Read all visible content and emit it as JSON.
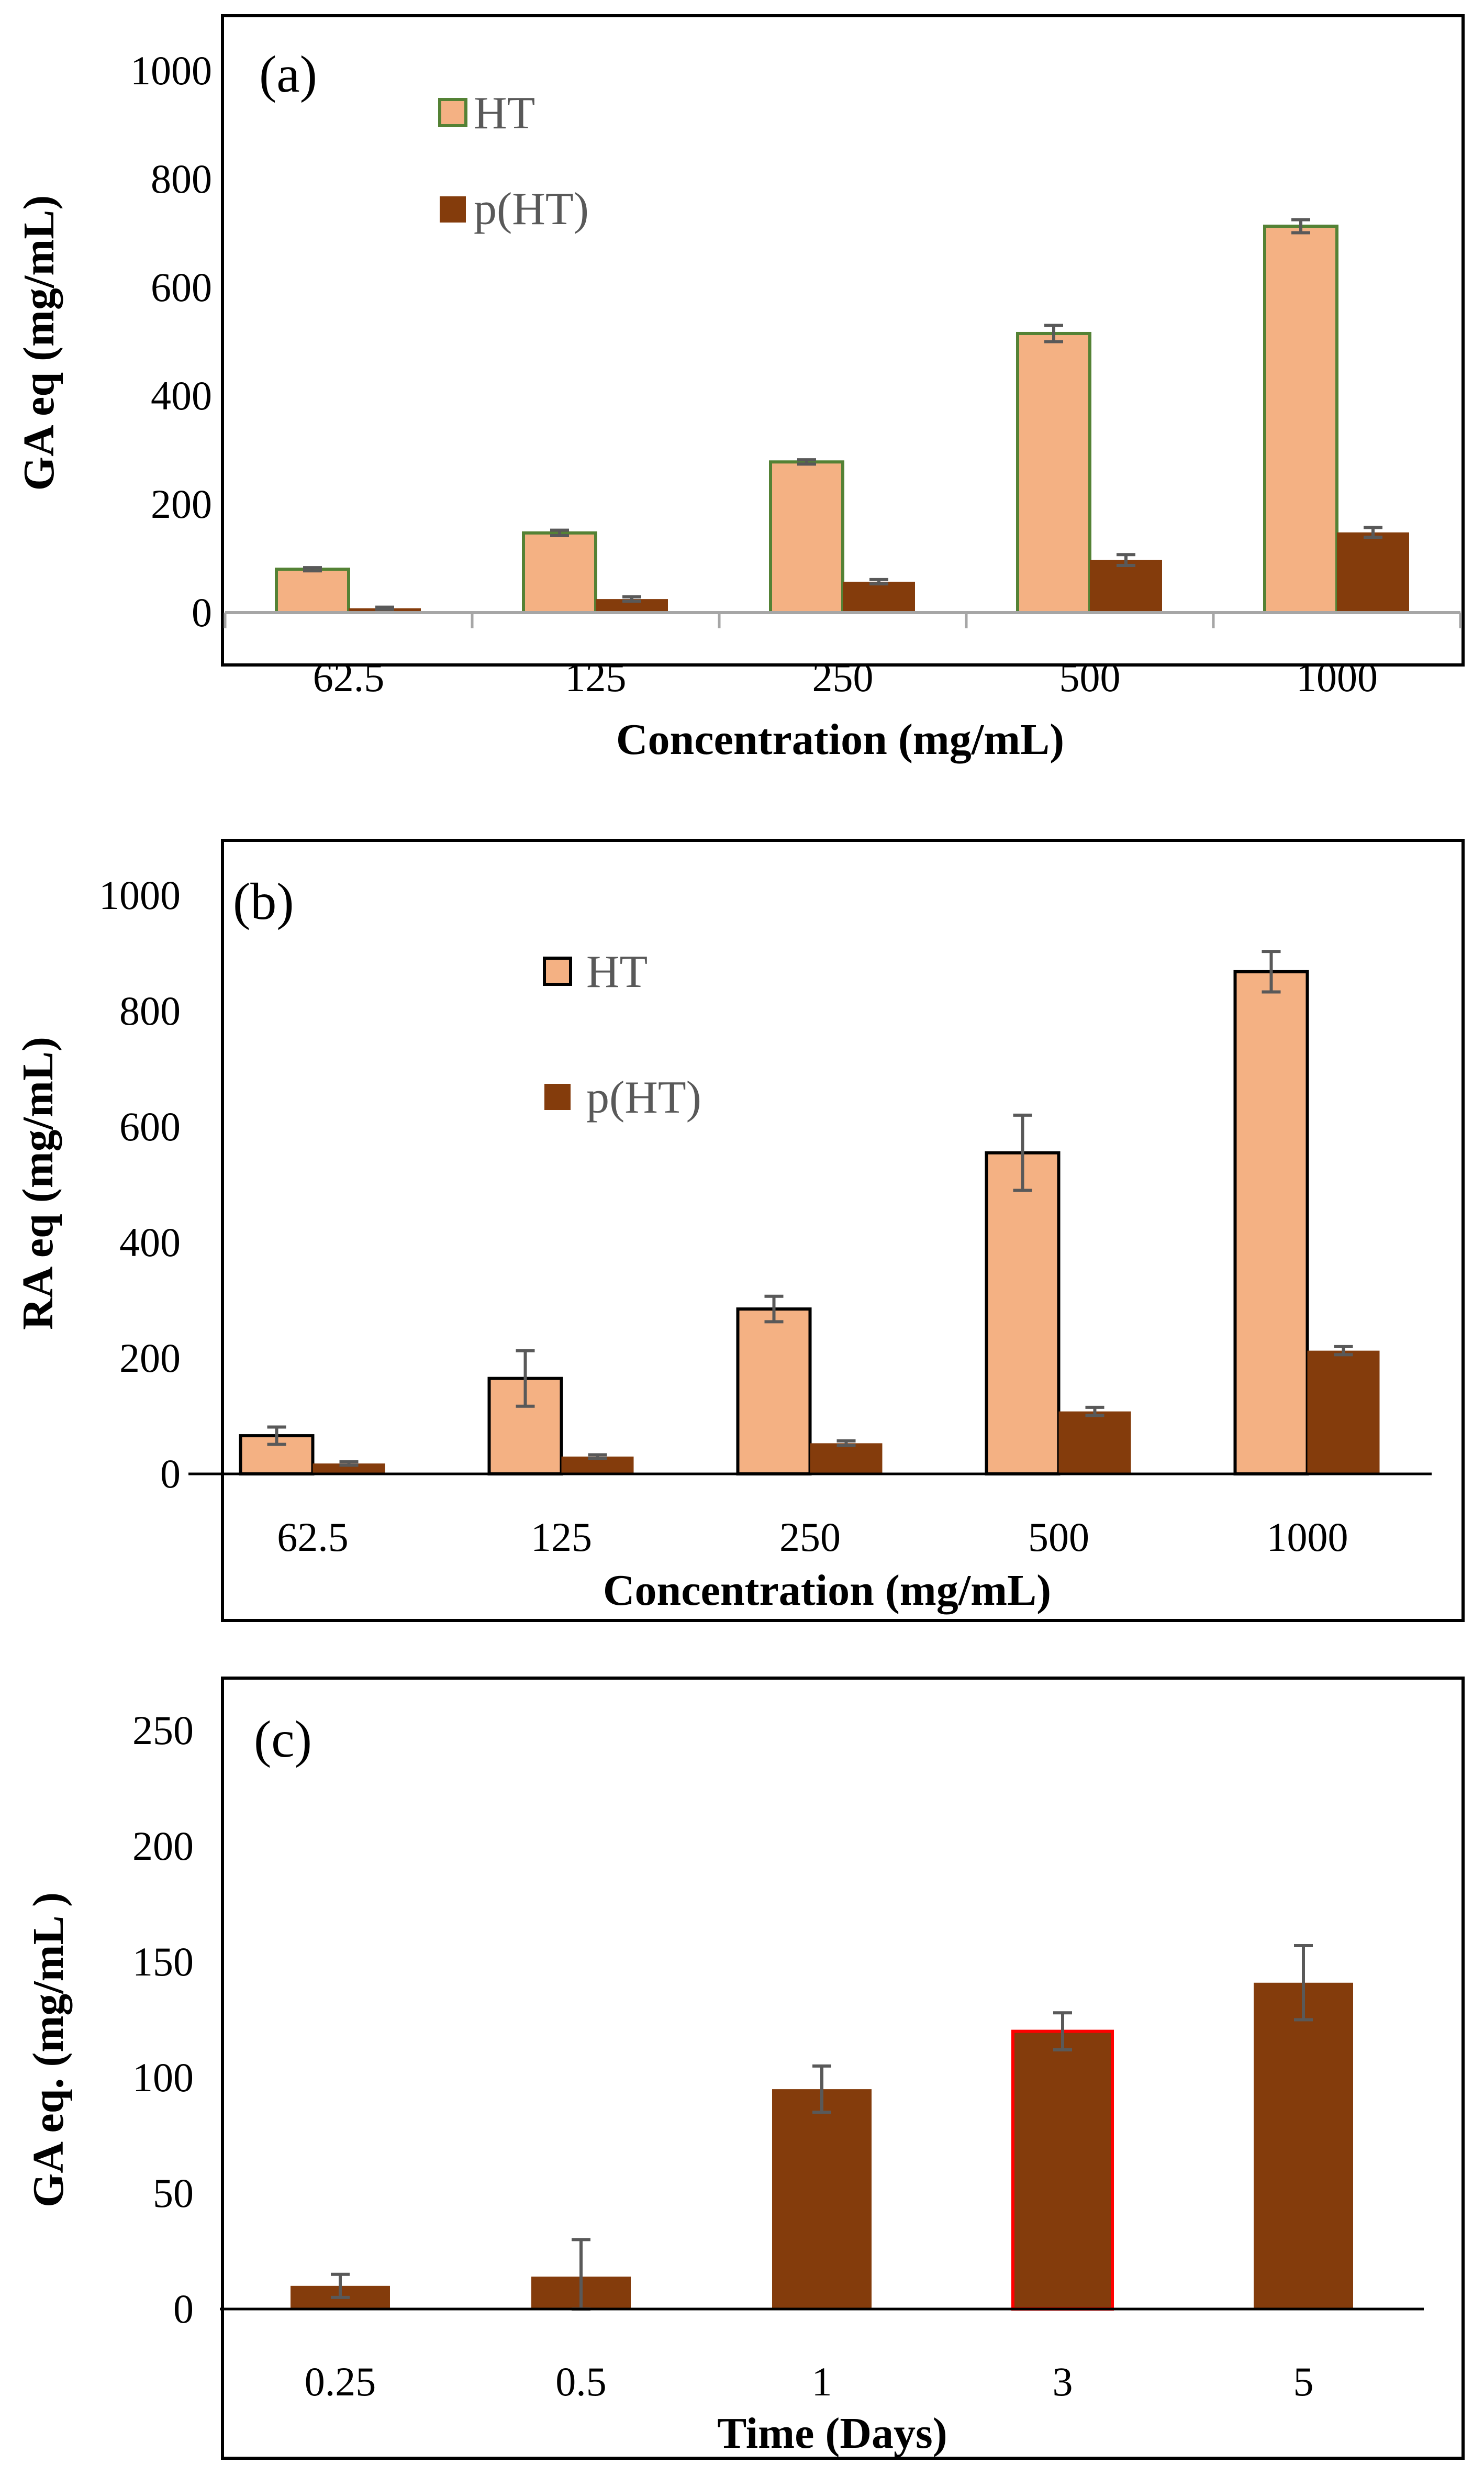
{
  "colors": {
    "ht_fill": "#F4B183",
    "pht_fill": "#843C0C",
    "ht_border_a": "#548235",
    "ht_border_b": "#000000",
    "highlight_border": "#FF0000",
    "error_bar": "#595959",
    "axis_line": "#A6A6A6"
  },
  "chart_data": [
    {
      "type": "bar",
      "panel_label": "(a)",
      "title": "",
      "xlabel": "Concentration (mg/mL)",
      "ylabel": "GA eq (mg/mL)",
      "ylim": [
        0,
        1000
      ],
      "yticks": [
        "0",
        "200",
        "400",
        "600",
        "800",
        "1000"
      ],
      "categories": [
        "62.5",
        "125",
        "250",
        "500",
        "1000"
      ],
      "legend_position": "top-left",
      "series": [
        {
          "name": "HT",
          "values": [
            80,
            147,
            278,
            515,
            713
          ],
          "errors": [
            3,
            5,
            4,
            15,
            12
          ]
        },
        {
          "name": "p(HT)",
          "values": [
            8,
            25,
            57,
            97,
            148
          ],
          "errors": [
            2,
            4,
            4,
            10,
            9
          ]
        }
      ]
    },
    {
      "type": "bar",
      "panel_label": "(b)",
      "title": "",
      "xlabel": "Concentration (mg/mL)",
      "ylabel": "RA eq (mg/mL)",
      "ylim": [
        0,
        1000
      ],
      "yticks": [
        "0",
        "200",
        "400",
        "600",
        "800",
        "1000"
      ],
      "categories": [
        "62.5",
        "125",
        "250",
        "500",
        "1000"
      ],
      "legend_position": "top-center",
      "series": [
        {
          "name": "HT",
          "values": [
            66,
            165,
            285,
            555,
            868
          ],
          "errors": [
            15,
            48,
            22,
            65,
            35
          ]
        },
        {
          "name": "p(HT)",
          "values": [
            18,
            30,
            53,
            108,
            213
          ],
          "errors": [
            3,
            3,
            4,
            7,
            7
          ]
        }
      ]
    },
    {
      "type": "bar",
      "panel_label": "(c)",
      "title": "",
      "xlabel": "Time (Days)",
      "ylabel": "GA eq. (mg/mL )",
      "ylim": [
        0,
        250
      ],
      "yticks": [
        "0",
        "50",
        "100",
        "150",
        "200",
        "250"
      ],
      "categories": [
        "0.25",
        "0.5",
        "1",
        "3",
        "5"
      ],
      "series": [
        {
          "name": "p(HT)",
          "values": [
            10,
            14,
            95,
            120,
            141
          ],
          "errors": [
            5,
            16,
            10,
            8,
            16
          ]
        }
      ]
    }
  ]
}
